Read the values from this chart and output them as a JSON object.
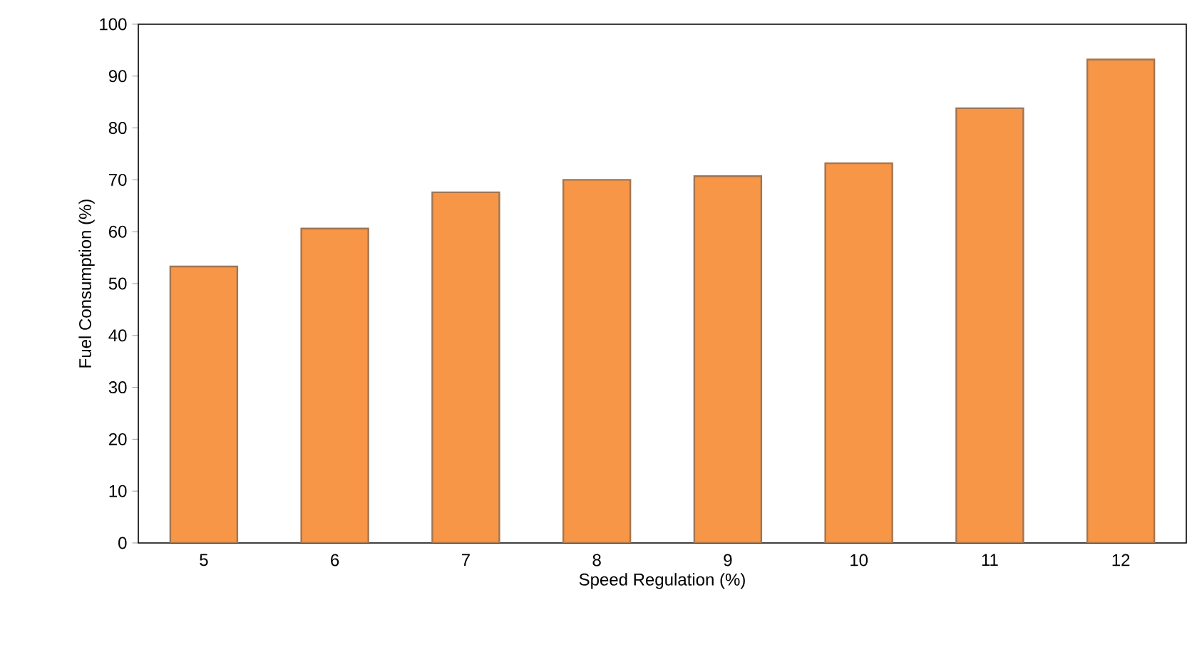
{
  "chart_data": {
    "type": "bar",
    "xlabel": "Speed Regulation (%)",
    "ylabel": "Fuel Consumption (%)",
    "categories": [
      "5",
      "6",
      "7",
      "8",
      "9",
      "10",
      "11",
      "12"
    ],
    "values": [
      53.3,
      60.6,
      67.6,
      70.0,
      70.7,
      73.2,
      83.8,
      93.2
    ],
    "color": "#f79646",
    "ylim": [
      0,
      100
    ],
    "yticks": [
      0,
      10,
      20,
      30,
      40,
      50,
      60,
      70,
      80,
      90,
      100
    ],
    "grid": false
  }
}
